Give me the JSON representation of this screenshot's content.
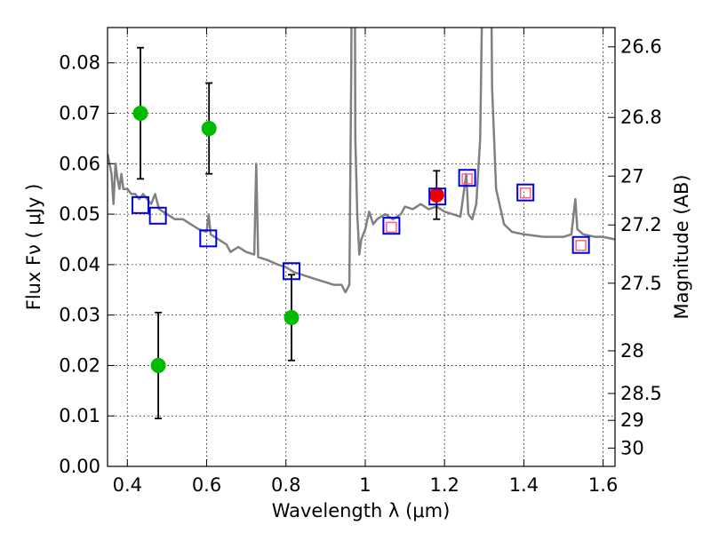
{
  "chart_data": {
    "type": "scatter",
    "xlabel": "Wavelength  λ (μm)",
    "ylabel": "Flux  Fν  ( μJy )",
    "ylabel_right": "Magnitude (AB)",
    "xlim": [
      0.35,
      1.63
    ],
    "ylim": [
      0.0,
      0.087
    ],
    "grid": true,
    "x_ticks": [
      {
        "value": 0.4,
        "label": "0.4"
      },
      {
        "value": 0.6,
        "label": "0.6"
      },
      {
        "value": 0.8,
        "label": "0.8"
      },
      {
        "value": 1.0,
        "label": "1"
      },
      {
        "value": 1.2,
        "label": "1.2"
      },
      {
        "value": 1.4,
        "label": "1.4"
      },
      {
        "value": 1.6,
        "label": "1.6"
      }
    ],
    "y_ticks": [
      {
        "value": 0.0,
        "label": "0.00"
      },
      {
        "value": 0.01,
        "label": "0.01"
      },
      {
        "value": 0.02,
        "label": "0.02"
      },
      {
        "value": 0.03,
        "label": "0.03"
      },
      {
        "value": 0.04,
        "label": "0.04"
      },
      {
        "value": 0.05,
        "label": "0.05"
      },
      {
        "value": 0.06,
        "label": "0.06"
      },
      {
        "value": 0.07,
        "label": "0.07"
      },
      {
        "value": 0.08,
        "label": "0.08"
      }
    ],
    "right_ticks": [
      {
        "mag": 26.6,
        "label": "26.6"
      },
      {
        "mag": 26.8,
        "label": "26.8"
      },
      {
        "mag": 27.0,
        "label": "27"
      },
      {
        "mag": 27.2,
        "label": "27.2"
      },
      {
        "mag": 27.5,
        "label": "27.5"
      },
      {
        "mag": 28.0,
        "label": "28"
      },
      {
        "mag": 28.5,
        "label": "28.5"
      },
      {
        "mag": 29.0,
        "label": "29"
      },
      {
        "mag": 30.0,
        "label": "30"
      }
    ],
    "series": [
      {
        "name": "model spectrum",
        "kind": "line",
        "color": "#808080",
        "points": [
          [
            0.35,
            0.062
          ],
          [
            0.36,
            0.058
          ],
          [
            0.365,
            0.052
          ],
          [
            0.37,
            0.06
          ],
          [
            0.375,
            0.057
          ],
          [
            0.38,
            0.055
          ],
          [
            0.385,
            0.058
          ],
          [
            0.39,
            0.055
          ],
          [
            0.4,
            0.055
          ],
          [
            0.41,
            0.054
          ],
          [
            0.42,
            0.054
          ],
          [
            0.43,
            0.053
          ],
          [
            0.44,
            0.054
          ],
          [
            0.45,
            0.053
          ],
          [
            0.46,
            0.052
          ],
          [
            0.47,
            0.054
          ],
          [
            0.48,
            0.051
          ],
          [
            0.5,
            0.05
          ],
          [
            0.52,
            0.049
          ],
          [
            0.54,
            0.049
          ],
          [
            0.56,
            0.048
          ],
          [
            0.58,
            0.047
          ],
          [
            0.6,
            0.0465
          ],
          [
            0.605,
            0.05
          ],
          [
            0.61,
            0.046
          ],
          [
            0.63,
            0.045
          ],
          [
            0.65,
            0.044
          ],
          [
            0.66,
            0.0425
          ],
          [
            0.68,
            0.0435
          ],
          [
            0.7,
            0.0425
          ],
          [
            0.72,
            0.042
          ],
          [
            0.725,
            0.06
          ],
          [
            0.73,
            0.0415
          ],
          [
            0.75,
            0.041
          ],
          [
            0.78,
            0.04
          ],
          [
            0.8,
            0.0395
          ],
          [
            0.82,
            0.0385
          ],
          [
            0.84,
            0.038
          ],
          [
            0.86,
            0.0375
          ],
          [
            0.88,
            0.037
          ],
          [
            0.9,
            0.0365
          ],
          [
            0.92,
            0.036
          ],
          [
            0.94,
            0.036
          ],
          [
            0.95,
            0.0345
          ],
          [
            0.96,
            0.036
          ],
          [
            0.965,
            0.08
          ],
          [
            0.968,
            0.15
          ],
          [
            0.972,
            0.15
          ],
          [
            0.975,
            0.065
          ],
          [
            0.98,
            0.05
          ],
          [
            0.985,
            0.042
          ],
          [
            0.99,
            0.045
          ],
          [
            1.0,
            0.047
          ],
          [
            1.01,
            0.0505
          ],
          [
            1.02,
            0.048
          ],
          [
            1.03,
            0.049
          ],
          [
            1.05,
            0.05
          ],
          [
            1.07,
            0.049
          ],
          [
            1.09,
            0.05
          ],
          [
            1.1,
            0.0515
          ],
          [
            1.12,
            0.051
          ],
          [
            1.14,
            0.052
          ],
          [
            1.16,
            0.051
          ],
          [
            1.18,
            0.0515
          ],
          [
            1.2,
            0.0505
          ],
          [
            1.22,
            0.05
          ],
          [
            1.24,
            0.0495
          ],
          [
            1.255,
            0.058
          ],
          [
            1.26,
            0.05
          ],
          [
            1.27,
            0.049
          ],
          [
            1.28,
            0.052
          ],
          [
            1.29,
            0.065
          ],
          [
            1.3,
            0.12
          ],
          [
            1.315,
            0.12
          ],
          [
            1.32,
            0.075
          ],
          [
            1.33,
            0.055
          ],
          [
            1.35,
            0.048
          ],
          [
            1.37,
            0.0465
          ],
          [
            1.4,
            0.046
          ],
          [
            1.45,
            0.0455
          ],
          [
            1.5,
            0.0455
          ],
          [
            1.52,
            0.046
          ],
          [
            1.53,
            0.053
          ],
          [
            1.535,
            0.047
          ],
          [
            1.55,
            0.046
          ],
          [
            1.58,
            0.0455
          ],
          [
            1.6,
            0.0455
          ],
          [
            1.63,
            0.045
          ]
        ]
      },
      {
        "name": "green observations",
        "kind": "points",
        "color": "#00bb00",
        "points": [
          {
            "x": 0.433,
            "y": 0.07,
            "err_lo": 0.013,
            "err_hi": 0.013
          },
          {
            "x": 0.478,
            "y": 0.02,
            "err_lo": 0.0105,
            "err_hi": 0.0105
          },
          {
            "x": 0.606,
            "y": 0.067,
            "err_lo": 0.009,
            "err_hi": 0.009
          },
          {
            "x": 0.814,
            "y": 0.0295,
            "err_lo": 0.0085,
            "err_hi": 0.0085
          }
        ]
      },
      {
        "name": "red observation",
        "kind": "points",
        "color": "#ee0000",
        "points": [
          {
            "x": 1.18,
            "y": 0.0538,
            "err_lo": 0.0048,
            "err_hi": 0.0048
          }
        ]
      },
      {
        "name": "blue model photometry",
        "kind": "squares",
        "color": "#0000dd",
        "points": [
          {
            "x": 0.433,
            "y": 0.0518
          },
          {
            "x": 0.477,
            "y": 0.0497
          },
          {
            "x": 0.604,
            "y": 0.0452
          },
          {
            "x": 0.814,
            "y": 0.0387
          },
          {
            "x": 1.066,
            "y": 0.0477
          },
          {
            "x": 1.182,
            "y": 0.0535
          },
          {
            "x": 1.257,
            "y": 0.0572
          },
          {
            "x": 1.404,
            "y": 0.0543
          },
          {
            "x": 1.544,
            "y": 0.0439
          }
        ]
      },
      {
        "name": "red-pink model photometry",
        "kind": "small-squares",
        "color": "#ff6080",
        "points": [
          {
            "x": 1.066,
            "y": 0.0474
          },
          {
            "x": 1.257,
            "y": 0.057
          },
          {
            "x": 1.404,
            "y": 0.0542
          },
          {
            "x": 1.544,
            "y": 0.0438
          }
        ]
      }
    ]
  }
}
